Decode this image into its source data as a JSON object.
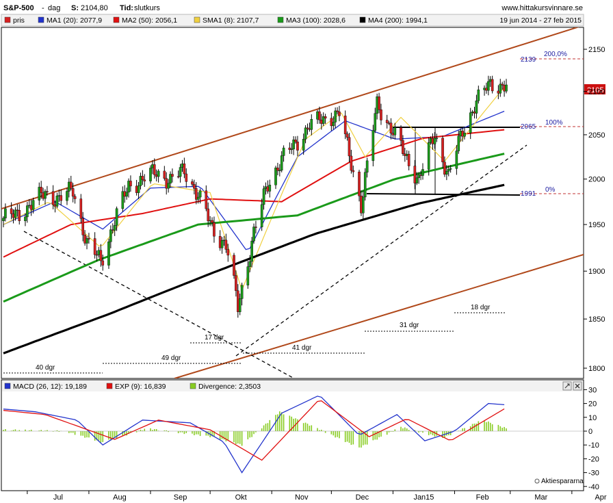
{
  "header": {
    "symbol": "S&P-500",
    "period_sep": "-",
    "period": "dag",
    "last_label": "S:",
    "last_value": "2104,80",
    "time_label": "Tid:",
    "time_value": "slutkurs",
    "site": "www.hittakursvinnare.se",
    "date_range": "19 jun 2014 - 27 feb 2015"
  },
  "legend": [
    {
      "text": "pris",
      "color": "#d62020"
    },
    {
      "text": "MA1 (20): 2077,9",
      "color": "#2233cc"
    },
    {
      "text": "MA2 (50): 2056,1",
      "color": "#e01010"
    },
    {
      "text": "SMA1 (8): 2107,7",
      "color": "#f0d040"
    },
    {
      "text": "MA3 (100): 2028,6",
      "color": "#1a9a1a"
    },
    {
      "text": "MA4 (200): 1994,1",
      "color": "#000000"
    }
  ],
  "macd_legend": [
    {
      "text": "MACD (26, 12): 19,189",
      "color": "#2233cc"
    },
    {
      "text": "EXP (9): 16,839",
      "color": "#e01010"
    },
    {
      "text": "Divergence: 2,3503",
      "color": "#88cc22"
    }
  ],
  "watermark": "Aktiespararna",
  "annotations": {
    "dgr_40": "40 dgr",
    "dgr_49": "49 dgr",
    "dgr_17": "17 dgr",
    "dgr_41": "41 dgr",
    "dgr_31": "31 dgr",
    "dgr_18": "18 dgr",
    "level_2139": "2139",
    "pct_200": "200,0%",
    "level_2065": "2065",
    "pct_100": "100%",
    "level_1991": "1991",
    "pct_0": "0%",
    "last_price_tag": "2105"
  },
  "colors": {
    "up_candle": "#1a9a1a",
    "down_candle": "#d62020",
    "channel": "#b0481a",
    "ma_fast": "#2233cc",
    "ma_50": "#e01010",
    "sma_8": "#f0d040",
    "ma_100": "#1a9a1a",
    "ma_200": "#000000",
    "macd": "#2233cc",
    "signal": "#e01010",
    "divergence": "#88cc22",
    "fib_level": "#1a1aa0",
    "fib_dash": "#c03030"
  },
  "chart_data": [
    {
      "type": "candlestick",
      "title": "S&P-500",
      "x_ticks": [
        "Jul",
        "Aug",
        "Sep",
        "Okt",
        "Nov",
        "Dec",
        "Jan15",
        "Feb",
        "Mar",
        "Apr"
      ],
      "x_range": [
        "2014-06-19",
        "2015-02-27"
      ],
      "y_ticks": [
        1800,
        1850,
        1900,
        1950,
        2000,
        2050,
        2100,
        2150
      ],
      "ylim": [
        1772,
        2177
      ],
      "grid": false,
      "series": [
        {
          "name": "pris",
          "type": "ohlc",
          "x": [
            "2014-06-19",
            "2014-06-26",
            "2014-07-03",
            "2014-07-10",
            "2014-07-17",
            "2014-07-24",
            "2014-07-31",
            "2014-08-07",
            "2014-08-14",
            "2014-08-21",
            "2014-08-28",
            "2014-09-04",
            "2014-09-11",
            "2014-09-18",
            "2014-09-25",
            "2014-10-02",
            "2014-10-09",
            "2014-10-15",
            "2014-10-23",
            "2014-10-30",
            "2014-11-06",
            "2014-11-13",
            "2014-11-20",
            "2014-11-28",
            "2014-12-05",
            "2014-12-10",
            "2014-12-16",
            "2014-12-24",
            "2014-12-31",
            "2015-01-07",
            "2015-01-14",
            "2015-01-22",
            "2015-01-29",
            "2015-02-05",
            "2015-02-12",
            "2015-02-19",
            "2015-02-27"
          ],
          "close": [
            1957,
            1960,
            1973,
            1984,
            1978,
            1988,
            1930,
            1910,
            1955,
            1992,
            2000,
            2008,
            1998,
            2010,
            1982,
            1946,
            1928,
            1862,
            1941,
            1994,
            2023,
            2039,
            2062,
            2068,
            2075,
            2026,
            1972,
            2085,
            2058,
            2026,
            2000,
            2050,
            2003,
            2055,
            2088,
            2110,
            2105
          ]
        },
        {
          "name": "MA1 (20)",
          "x": [
            "2014-06-19",
            "2014-07-15",
            "2014-08-08",
            "2014-09-01",
            "2014-09-26",
            "2014-10-20",
            "2014-11-14",
            "2014-12-08",
            "2015-01-02",
            "2015-01-26",
            "2015-02-27"
          ],
          "values": [
            1950,
            1975,
            1945,
            1990,
            1992,
            1920,
            2025,
            2066,
            2045,
            2048,
            2078
          ]
        },
        {
          "name": "MA2 (50)",
          "x": [
            "2014-06-19",
            "2014-07-23",
            "2014-08-28",
            "2014-10-01",
            "2014-11-06",
            "2014-12-11",
            "2015-01-16",
            "2015-02-27"
          ],
          "values": [
            1915,
            1950,
            1962,
            1978,
            1975,
            2020,
            2046,
            2056
          ]
        },
        {
          "name": "SMA1 (8)",
          "x": [
            "2014-06-19",
            "2014-07-12",
            "2014-08-07",
            "2014-09-02",
            "2014-10-01",
            "2014-10-17",
            "2014-11-18",
            "2014-12-06",
            "2014-12-18",
            "2015-01-05",
            "2015-01-27",
            "2015-02-27"
          ],
          "values": [
            1950,
            1975,
            1925,
            1995,
            1985,
            1880,
            2045,
            2075,
            2025,
            2070,
            2020,
            2108
          ]
        },
        {
          "name": "MA3 (100)",
          "x": [
            "2014-06-19",
            "2014-08-06",
            "2014-09-25",
            "2014-11-14",
            "2015-01-02",
            "2015-02-27"
          ],
          "values": [
            1868,
            1912,
            1950,
            1960,
            2000,
            2029
          ]
        },
        {
          "name": "MA4 (200)",
          "x": [
            "2014-06-19",
            "2014-08-11",
            "2014-10-02",
            "2014-11-23",
            "2015-01-14",
            "2015-02-27"
          ],
          "values": [
            1815,
            1855,
            1898,
            1940,
            1973,
            1994
          ]
        }
      ],
      "levels": [
        {
          "value": 2139,
          "label": "200,0%"
        },
        {
          "value": 2065,
          "label": "100%"
        },
        {
          "value": 1991,
          "label": "0%"
        }
      ],
      "last_price": 2105
    },
    {
      "type": "line",
      "title": "MACD",
      "x_ticks": [
        "Jul",
        "Aug",
        "Sep",
        "Okt",
        "Nov",
        "Dec",
        "Jan15",
        "Feb",
        "Mar",
        "Apr"
      ],
      "x_range": [
        "2014-06-19",
        "2015-02-27"
      ],
      "y_ticks": [
        30,
        20,
        10,
        0,
        -10,
        -20,
        -30,
        -40
      ],
      "ylim": [
        -45,
        33
      ],
      "series": [
        {
          "name": "MACD (26, 12)",
          "x": [
            "2014-06-19",
            "2014-07-05",
            "2014-07-26",
            "2014-08-08",
            "2014-08-28",
            "2014-09-21",
            "2014-10-08",
            "2014-10-17",
            "2014-11-06",
            "2014-11-25",
            "2014-12-15",
            "2015-01-03",
            "2015-01-17",
            "2015-02-01",
            "2015-02-18",
            "2015-02-27"
          ],
          "values": [
            16,
            14,
            8,
            -10,
            8,
            6,
            -8,
            -30,
            13,
            26,
            -3,
            12,
            -7,
            0,
            20,
            19
          ]
        },
        {
          "name": "EXP (9)",
          "x": [
            "2014-06-19",
            "2014-07-10",
            "2014-08-14",
            "2014-09-05",
            "2014-10-01",
            "2014-10-27",
            "2014-11-25",
            "2014-12-20",
            "2015-01-08",
            "2015-01-30",
            "2015-02-27"
          ],
          "values": [
            15,
            12,
            -6,
            8,
            1,
            -21,
            23,
            -4,
            9,
            -7,
            17
          ]
        },
        {
          "name": "Divergence",
          "x": [
            "2014-06-19",
            "2014-07-20",
            "2014-08-08",
            "2014-08-30",
            "2014-10-02",
            "2014-10-17",
            "2014-11-05",
            "2014-11-24",
            "2014-12-15",
            "2015-01-05",
            "2015-01-26",
            "2015-02-15",
            "2015-02-27"
          ],
          "values": [
            1,
            0,
            -8,
            2,
            -4,
            -10,
            14,
            2,
            -12,
            3,
            -5,
            8,
            2
          ]
        }
      ]
    }
  ]
}
